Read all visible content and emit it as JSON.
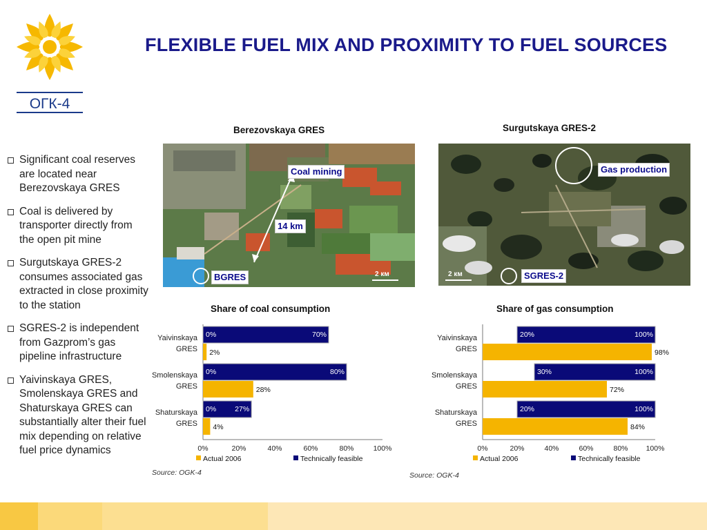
{
  "title": "FLEXIBLE FUEL MIX AND PROXIMITY TO FUEL SOURCES",
  "logo": {
    "text": "ОГК-4"
  },
  "bullets": [
    "Significant coal reserves are located near Berezovskaya GRES",
    "Coal is delivered by transporter directly from the open pit mine",
    "Surgutskaya GRES-2 consumes associated gas extracted in close proximity to the station",
    "SGRES-2 is independent from Gazprom’s gas pipeline infrastructure",
    "Yaivinskaya GRES, Smolenskaya GRES and Shaturskaya GRES can substantially alter their  fuel mix depending on relative fuel price dynamics"
  ],
  "photos": {
    "left": {
      "caption": "Berezovskaya GRES",
      "label_mine": "Coal mining",
      "label_distance": "14 km",
      "label_station": "BGRES",
      "scale": "2 км"
    },
    "right": {
      "caption": "Surgutskaya GRES-2",
      "label_source": "Gas production",
      "label_station": "SGRES-2",
      "scale": "2 км"
    }
  },
  "chart_data": [
    {
      "type": "bar",
      "orientation": "horizontal",
      "title": "Share of coal consumption",
      "categories": [
        "Yaivinskaya GRES",
        "Smolenskaya GRES",
        "Shaturskaya GRES"
      ],
      "category_lines": [
        [
          "Yaivinskaya",
          "GRES"
        ],
        [
          "Smolenskaya",
          "GRES"
        ],
        [
          "Shaturskaya",
          "GRES"
        ]
      ],
      "series": [
        {
          "name": "Technically feasible",
          "color": "#0a0a78",
          "low": [
            0,
            0,
            0
          ],
          "values": [
            70,
            80,
            27
          ],
          "low_labels": [
            "0%",
            "0%",
            "0%"
          ],
          "labels": [
            "70%",
            "80%",
            "27%"
          ]
        },
        {
          "name": "Actual 2006",
          "color": "#f5b400",
          "values": [
            2,
            28,
            4
          ],
          "labels": [
            "2%",
            "28%",
            "4%"
          ]
        }
      ],
      "xlim": [
        0,
        100
      ],
      "ticks": [
        "0%",
        "20%",
        "40%",
        "60%",
        "80%",
        "100%"
      ],
      "source": "Source: OGK-4"
    },
    {
      "type": "bar",
      "orientation": "horizontal",
      "title": "Share of gas consumption",
      "categories": [
        "Yaivinskaya GRES",
        "Smolenskaya GRES",
        "Shaturskaya GRES"
      ],
      "category_lines": [
        [
          "Yaivinskaya",
          "GRES"
        ],
        [
          "Smolenskaya",
          "GRES"
        ],
        [
          "Shaturskaya",
          "GRES"
        ]
      ],
      "series": [
        {
          "name": "Technically feasible",
          "color": "#0a0a78",
          "low": [
            20,
            30,
            20
          ],
          "values": [
            100,
            100,
            100
          ],
          "low_labels": [
            "20%",
            "30%",
            "20%"
          ],
          "labels": [
            "100%",
            "100%",
            "100%"
          ]
        },
        {
          "name": "Actual 2006",
          "color": "#f5b400",
          "values": [
            98,
            72,
            84
          ],
          "labels": [
            "98%",
            "72%",
            "84%"
          ]
        }
      ],
      "xlim": [
        0,
        100
      ],
      "ticks": [
        "0%",
        "20%",
        "40%",
        "60%",
        "80%",
        "100%"
      ],
      "source": "Source: OGK-4"
    }
  ],
  "legend": {
    "actual": "Actual 2006",
    "feasible": "Technically feasible"
  }
}
